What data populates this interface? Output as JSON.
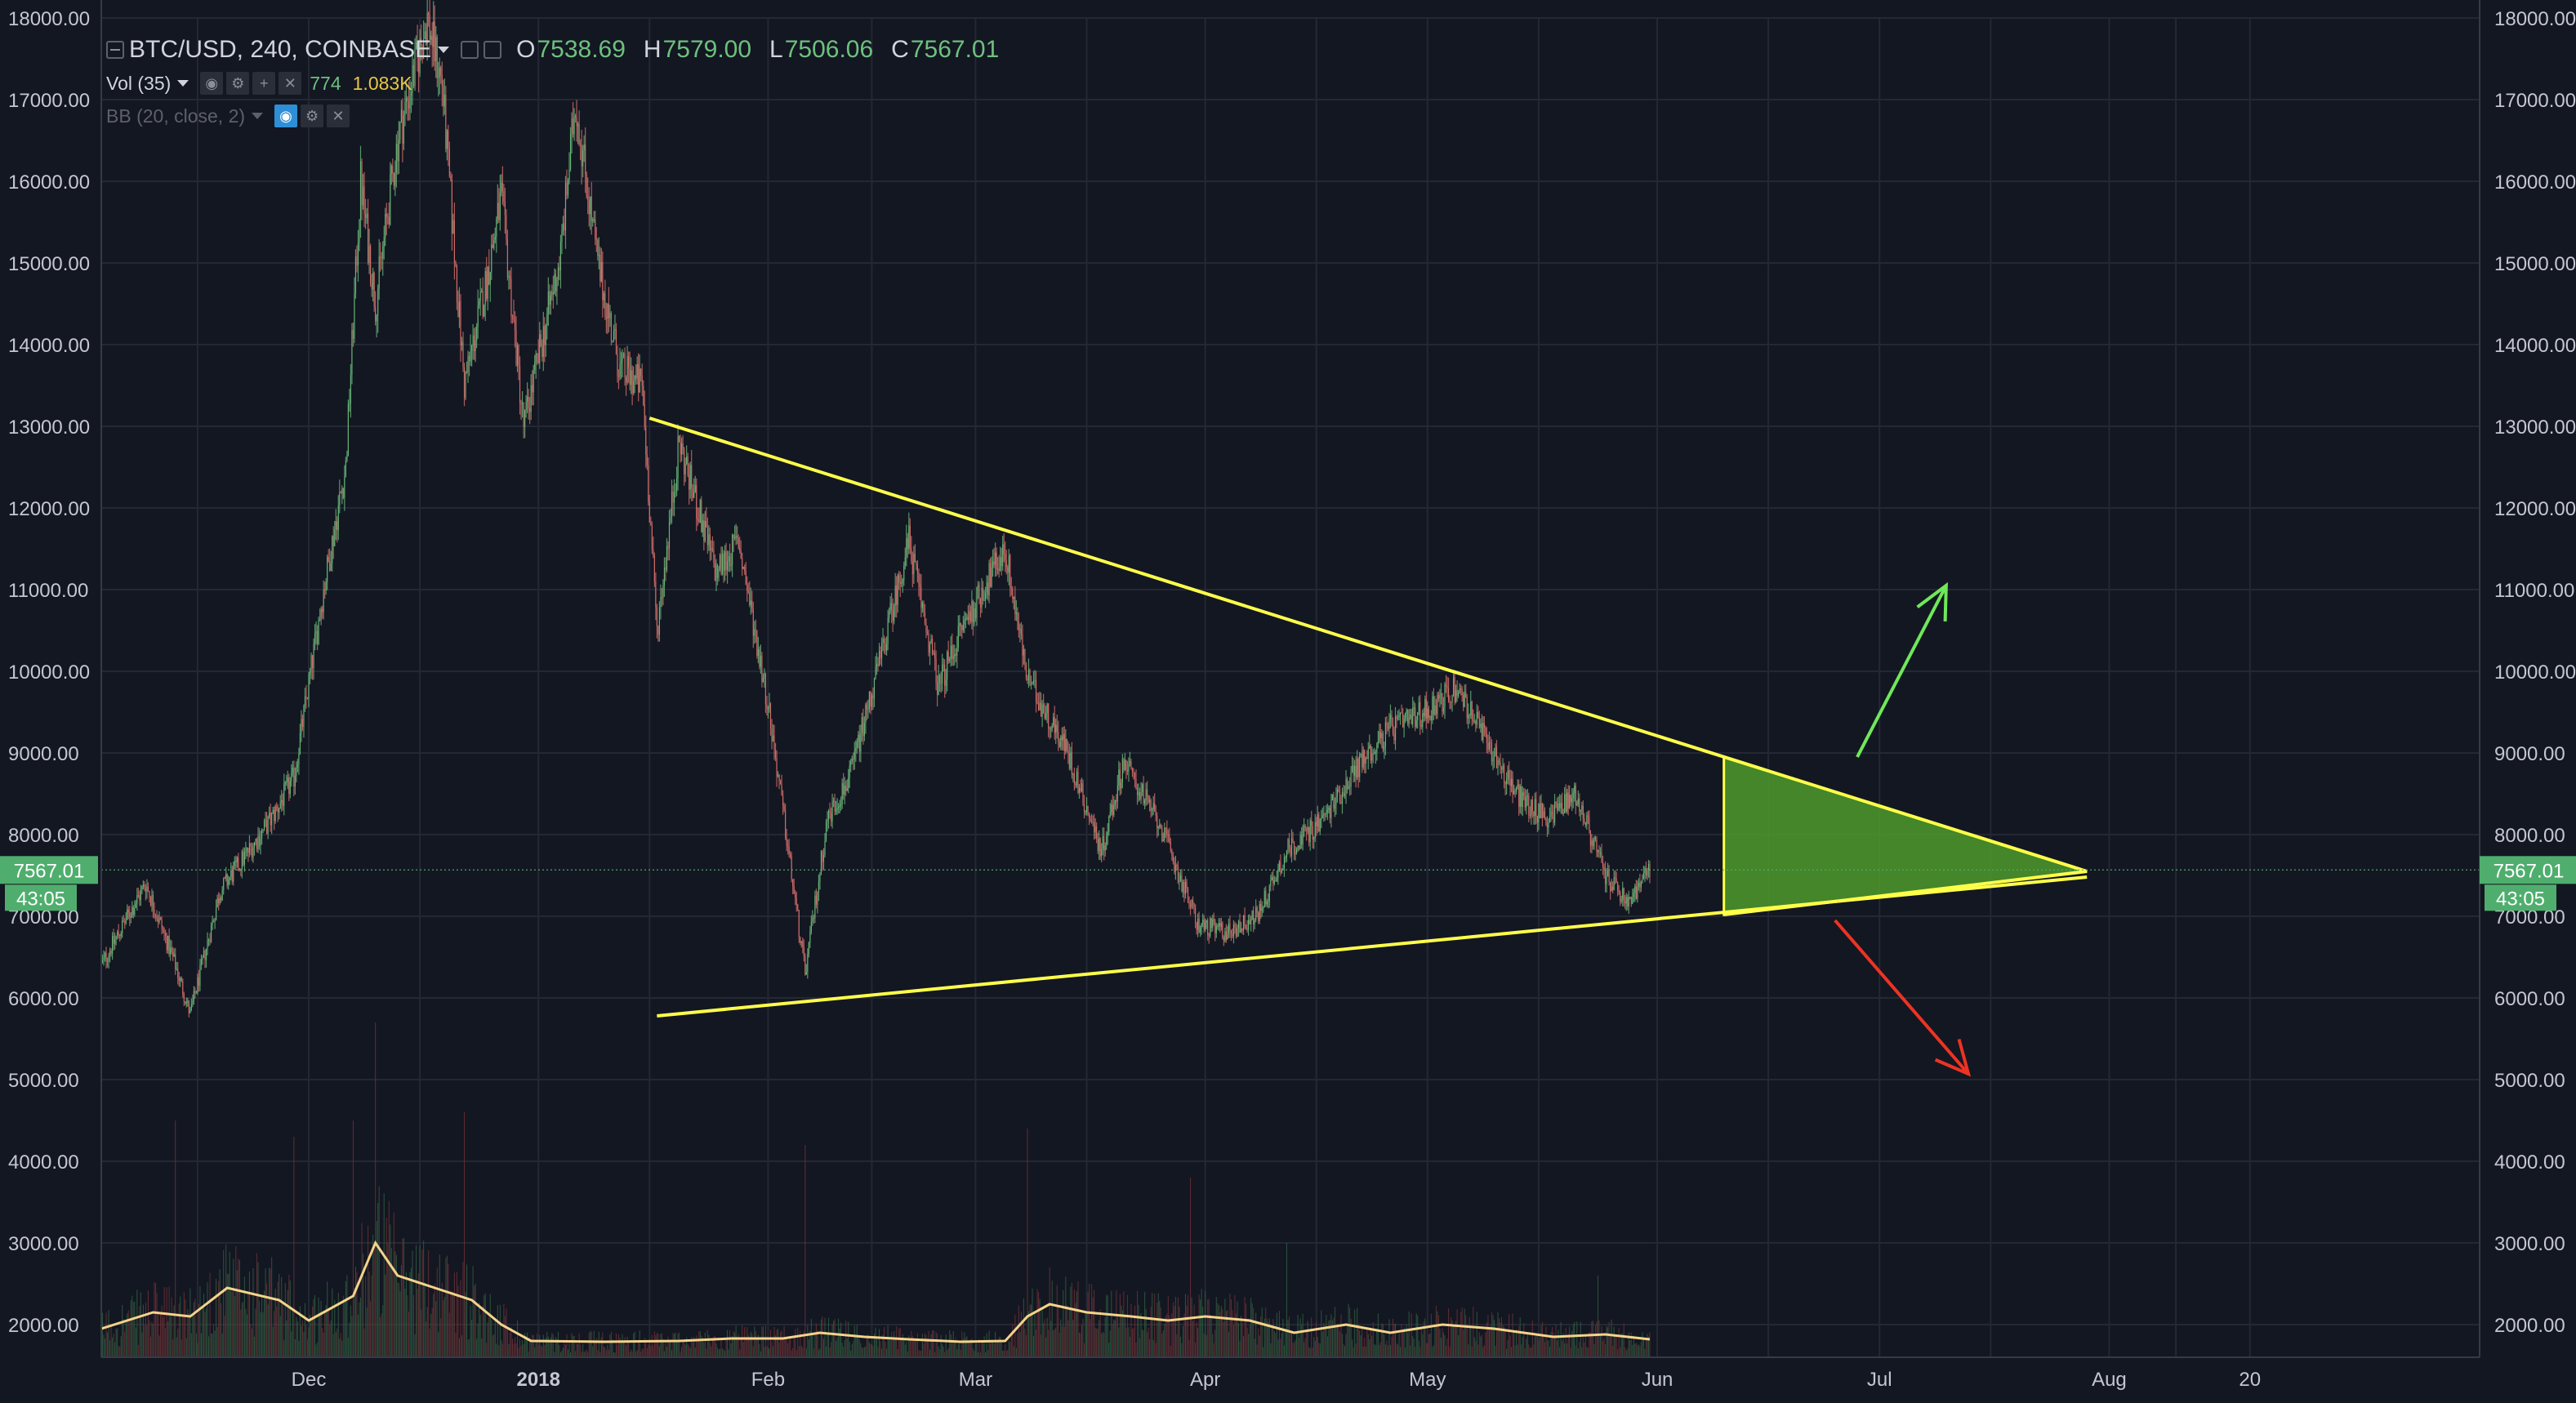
{
  "header": {
    "symbol": "BTC/USD, 240, COINBASE",
    "ohlc": [
      {
        "label": "O",
        "value": "7538.69"
      },
      {
        "label": "H",
        "value": "7579.00"
      },
      {
        "label": "L",
        "value": "7506.06"
      },
      {
        "label": "C",
        "value": "7567.01"
      }
    ],
    "volume_study": "Vol (35)",
    "volume_value": "774",
    "volume_ma_value": "1.083K",
    "bb_study": "BB (20, close, 2)"
  },
  "last_price": {
    "label": "7567.01",
    "countdown": "43:05",
    "value": 7567.01
  },
  "colors": {
    "background": "#131722",
    "up": "#6ec07e",
    "down": "#e0736f",
    "trendline": "#ffff4a",
    "triangle_fill": "#4e9a2a",
    "arrow_up": "#6fe85a",
    "arrow_down": "#ee3322",
    "price_label_bg": "#4fae6d",
    "volume_ma": "#f4d38a"
  },
  "chart_data": {
    "type": "candlestick",
    "timeframe": "240",
    "x_ticks": [
      "Dec",
      "2018",
      "Feb",
      "Mar",
      "Apr",
      "May",
      "Jun",
      "Jul",
      "Aug",
      "20"
    ],
    "x_tick_dates": [
      "2017-12-01",
      "2018-01-01",
      "2018-02-01",
      "2018-03-01",
      "2018-04-01",
      "2018-05-01",
      "2018-06-01",
      "2018-07-01",
      "2018-08-01",
      "2018-08-20"
    ],
    "x_range": [
      "2017-11-03",
      "2018-09-20"
    ],
    "y_ticks": [
      "18000.00",
      "17000.00",
      "16000.00",
      "15000.00",
      "14000.00",
      "13000.00",
      "12000.00",
      "11000.00",
      "10000.00",
      "9000.00",
      "8000.00",
      "7000.00",
      "6000.00",
      "5000.00",
      "4000.00",
      "3000.00",
      "2000.00"
    ],
    "y_range": [
      1600,
      18000
    ],
    "grid": true,
    "price_path": [
      [
        "2017-11-03",
        6400
      ],
      [
        "2017-11-09",
        7400
      ],
      [
        "2017-11-13",
        6400
      ],
      [
        "2017-11-15",
        5800
      ],
      [
        "2017-11-19",
        7300
      ],
      [
        "2017-11-26",
        8200
      ],
      [
        "2017-11-29",
        8700
      ],
      [
        "2017-12-03",
        11000
      ],
      [
        "2017-12-06",
        12500
      ],
      [
        "2017-12-08",
        16000
      ],
      [
        "2017-12-10",
        14500
      ],
      [
        "2017-12-13",
        16500
      ],
      [
        "2017-12-17",
        18000
      ],
      [
        "2017-12-19",
        17200
      ],
      [
        "2017-12-22",
        13500
      ],
      [
        "2017-12-25",
        14800
      ],
      [
        "2017-12-27",
        15800
      ],
      [
        "2017-12-30",
        13000
      ],
      [
        "2018-01-04",
        15100
      ],
      [
        "2018-01-06",
        17000
      ],
      [
        "2018-01-09",
        15000
      ],
      [
        "2018-01-12",
        13700
      ],
      [
        "2018-01-15",
        13500
      ],
      [
        "2018-01-17",
        10500
      ],
      [
        "2018-01-20",
        12800
      ],
      [
        "2018-01-25",
        11200
      ],
      [
        "2018-01-28",
        11600
      ],
      [
        "2018-02-01",
        9600
      ],
      [
        "2018-02-06",
        6300
      ],
      [
        "2018-02-09",
        8200
      ],
      [
        "2018-02-12",
        8700
      ],
      [
        "2018-02-16",
        10100
      ],
      [
        "2018-02-20",
        11600
      ],
      [
        "2018-02-24",
        9800
      ],
      [
        "2018-02-27",
        10500
      ],
      [
        "2018-03-05",
        11500
      ],
      [
        "2018-03-08",
        9900
      ],
      [
        "2018-03-13",
        9100
      ],
      [
        "2018-03-18",
        7800
      ],
      [
        "2018-03-21",
        8900
      ],
      [
        "2018-03-26",
        8100
      ],
      [
        "2018-03-31",
        6900
      ],
      [
        "2018-04-04",
        6800
      ],
      [
        "2018-04-08",
        7000
      ],
      [
        "2018-04-12",
        7800
      ],
      [
        "2018-04-17",
        8200
      ],
      [
        "2018-04-22",
        8900
      ],
      [
        "2018-04-26",
        9300
      ],
      [
        "2018-04-29",
        9400
      ],
      [
        "2018-05-05",
        9800
      ],
      [
        "2018-05-08",
        9300
      ],
      [
        "2018-05-13",
        8500
      ],
      [
        "2018-05-17",
        8200
      ],
      [
        "2018-05-21",
        8500
      ],
      [
        "2018-05-25",
        7500
      ],
      [
        "2018-05-28",
        7150
      ],
      [
        "2018-05-31",
        7567
      ]
    ],
    "volume_ma_path": [
      [
        "2017-11-03",
        1950
      ],
      [
        "2017-11-10",
        2150
      ],
      [
        "2017-11-15",
        2100
      ],
      [
        "2017-11-20",
        2450
      ],
      [
        "2017-11-27",
        2300
      ],
      [
        "2017-12-01",
        2050
      ],
      [
        "2017-12-07",
        2350
      ],
      [
        "2017-12-10",
        3000
      ],
      [
        "2017-12-13",
        2600
      ],
      [
        "2017-12-18",
        2450
      ],
      [
        "2017-12-23",
        2300
      ],
      [
        "2017-12-27",
        2000
      ],
      [
        "2017-12-31",
        1800
      ],
      [
        "2018-01-10",
        1790
      ],
      [
        "2018-01-20",
        1800
      ],
      [
        "2018-01-27",
        1830
      ],
      [
        "2018-02-03",
        1830
      ],
      [
        "2018-02-08",
        1900
      ],
      [
        "2018-02-14",
        1850
      ],
      [
        "2018-02-20",
        1820
      ],
      [
        "2018-02-27",
        1790
      ],
      [
        "2018-03-05",
        1800
      ],
      [
        "2018-03-08",
        2100
      ],
      [
        "2018-03-11",
        2250
      ],
      [
        "2018-03-16",
        2150
      ],
      [
        "2018-03-22",
        2100
      ],
      [
        "2018-03-27",
        2050
      ],
      [
        "2018-04-01",
        2100
      ],
      [
        "2018-04-07",
        2050
      ],
      [
        "2018-04-13",
        1900
      ],
      [
        "2018-04-20",
        2000
      ],
      [
        "2018-04-26",
        1900
      ],
      [
        "2018-05-03",
        2000
      ],
      [
        "2018-05-10",
        1950
      ],
      [
        "2018-05-18",
        1850
      ],
      [
        "2018-05-25",
        1880
      ],
      [
        "2018-05-31",
        1820
      ]
    ],
    "volume_spikes": [
      [
        "2017-11-13",
        4500
      ],
      [
        "2017-11-29",
        4300
      ],
      [
        "2017-12-07",
        4500
      ],
      [
        "2017-12-10",
        5700
      ],
      [
        "2017-12-22",
        4600
      ],
      [
        "2018-02-06",
        4200
      ],
      [
        "2018-03-08",
        4400
      ],
      [
        "2018-03-30",
        3800
      ],
      [
        "2018-04-12",
        3000
      ],
      [
        "2018-05-24",
        2600
      ]
    ],
    "trendlines": [
      {
        "from": [
          "2018-01-16",
          13100
        ],
        "to": [
          "2018-07-29",
          7550
        ]
      },
      {
        "from": [
          "2018-01-17",
          5780
        ],
        "to": [
          "2018-07-29",
          7480
        ]
      },
      {
        "from": [
          "2018-06-10",
          7020
        ],
        "to": [
          "2018-07-29",
          7550
        ]
      }
    ],
    "triangle_zone": [
      [
        "2018-06-10",
        8950
      ],
      [
        "2018-07-29",
        7550
      ],
      [
        "2018-06-10",
        7020
      ]
    ],
    "arrows": [
      {
        "direction": "up",
        "from": [
          "2018-06-28",
          8950
        ],
        "to": [
          "2018-07-10",
          11050
        ]
      },
      {
        "direction": "down",
        "from": [
          "2018-06-25",
          6950
        ],
        "to": [
          "2018-07-13",
          5070
        ]
      }
    ]
  }
}
